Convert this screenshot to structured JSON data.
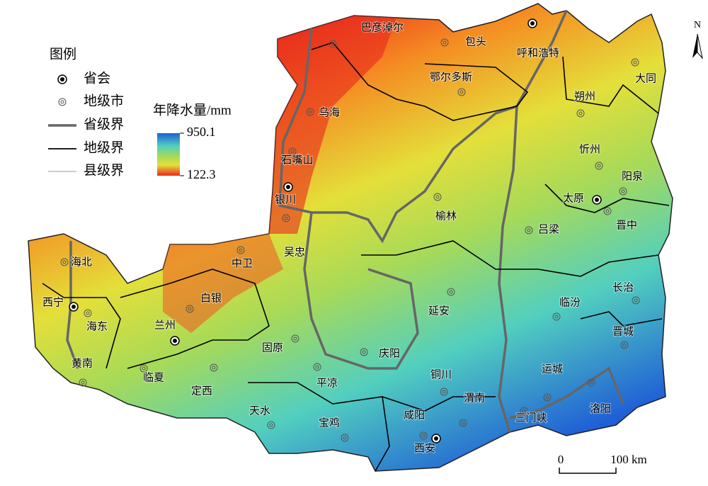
{
  "legend": {
    "title": "图例",
    "items": [
      "省会",
      "地级市",
      "省级界",
      "地级界",
      "县级界"
    ]
  },
  "colorbar": {
    "title": "年降水量/mm",
    "max": 950.1,
    "min": 122.3
  },
  "north": "N",
  "scale_bar": {
    "labels": [
      "0",
      "100 km"
    ]
  },
  "cities": [
    {
      "name": "巴彦淖尔",
      "type": "prefecture"
    },
    {
      "name": "包头",
      "type": "prefecture"
    },
    {
      "name": "呼和浩特",
      "type": "capital"
    },
    {
      "name": "鄂尔多斯",
      "type": "prefecture"
    },
    {
      "name": "大同",
      "type": "prefecture"
    },
    {
      "name": "朔州",
      "type": "prefecture"
    },
    {
      "name": "乌海",
      "type": "prefecture"
    },
    {
      "name": "忻州",
      "type": "prefecture"
    },
    {
      "name": "石嘴山",
      "type": "prefecture"
    },
    {
      "name": "阳泉",
      "type": "prefecture"
    },
    {
      "name": "银川",
      "type": "capital"
    },
    {
      "name": "太原",
      "type": "capital"
    },
    {
      "name": "晋中",
      "type": "prefecture"
    },
    {
      "name": "吕梁",
      "type": "prefecture"
    },
    {
      "name": "榆林",
      "type": "prefecture"
    },
    {
      "name": "吴忠",
      "type": "prefecture"
    },
    {
      "name": "中卫",
      "type": "prefecture"
    },
    {
      "name": "海北",
      "type": "prefecture"
    },
    {
      "name": "长治",
      "type": "prefecture"
    },
    {
      "name": "临汾",
      "type": "prefecture"
    },
    {
      "name": "白银",
      "type": "prefecture"
    },
    {
      "name": "西宁",
      "type": "capital"
    },
    {
      "name": "延安",
      "type": "prefecture"
    },
    {
      "name": "海东",
      "type": "prefecture"
    },
    {
      "name": "兰州",
      "type": "capital"
    },
    {
      "name": "晋城",
      "type": "prefecture"
    },
    {
      "name": "固原",
      "type": "prefecture"
    },
    {
      "name": "庆阳",
      "type": "prefecture"
    },
    {
      "name": "黄南",
      "type": "prefecture"
    },
    {
      "name": "运城",
      "type": "prefecture"
    },
    {
      "name": "临夏",
      "type": "prefecture"
    },
    {
      "name": "定西",
      "type": "prefecture"
    },
    {
      "name": "铜川",
      "type": "prefecture"
    },
    {
      "name": "平凉",
      "type": "prefecture"
    },
    {
      "name": "渭南",
      "type": "prefecture"
    },
    {
      "name": "天水",
      "type": "prefecture"
    },
    {
      "name": "洛阳",
      "type": "prefecture"
    },
    {
      "name": "宝鸡",
      "type": "prefecture"
    },
    {
      "name": "咸阳",
      "type": "prefecture"
    },
    {
      "name": "三门峡",
      "type": "prefecture"
    },
    {
      "name": "西安",
      "type": "capital"
    }
  ]
}
